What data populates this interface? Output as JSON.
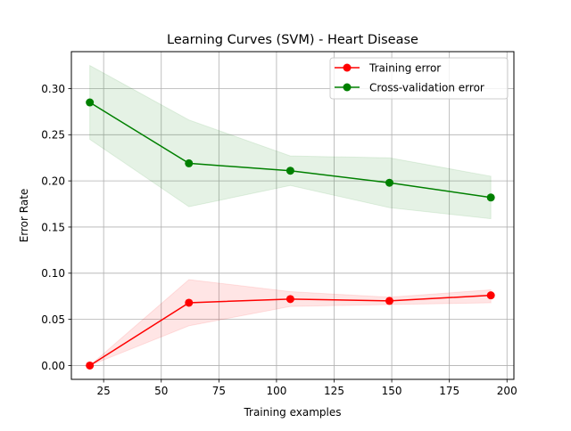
{
  "chart_data": {
    "type": "line",
    "title": "Learning Curves (SVM) - Heart Disease",
    "xlabel": "Training examples",
    "ylabel": "Error Rate",
    "xlim": [
      11,
      203
    ],
    "ylim": [
      -0.015,
      0.34
    ],
    "xticks": [
      25,
      50,
      75,
      100,
      125,
      150,
      175,
      200
    ],
    "yticks": [
      0.0,
      0.05,
      0.1,
      0.15,
      0.2,
      0.25,
      0.3
    ],
    "xtick_labels": [
      "25",
      "50",
      "75",
      "100",
      "125",
      "150",
      "175",
      "200"
    ],
    "ytick_labels": [
      "0.00",
      "0.05",
      "0.10",
      "0.15",
      "0.20",
      "0.25",
      "0.30"
    ],
    "grid": true,
    "legend_position": "top-right",
    "x": [
      19,
      62,
      106,
      149,
      193
    ],
    "series": [
      {
        "name": "Training error",
        "values": [
          0.0,
          0.068,
          0.072,
          0.07,
          0.076
        ],
        "band_low": [
          0.0,
          0.043,
          0.064,
          0.066,
          0.068
        ],
        "band_high": [
          0.0,
          0.093,
          0.08,
          0.074,
          0.082
        ],
        "color": "#ff0000",
        "band_color": "#ff0000"
      },
      {
        "name": "Cross-validation error",
        "values": [
          0.285,
          0.219,
          0.211,
          0.198,
          0.182
        ],
        "band_low": [
          0.245,
          0.172,
          0.195,
          0.171,
          0.159
        ],
        "band_high": [
          0.325,
          0.266,
          0.227,
          0.225,
          0.205
        ],
        "color": "#008000",
        "band_color": "#008000"
      }
    ]
  }
}
